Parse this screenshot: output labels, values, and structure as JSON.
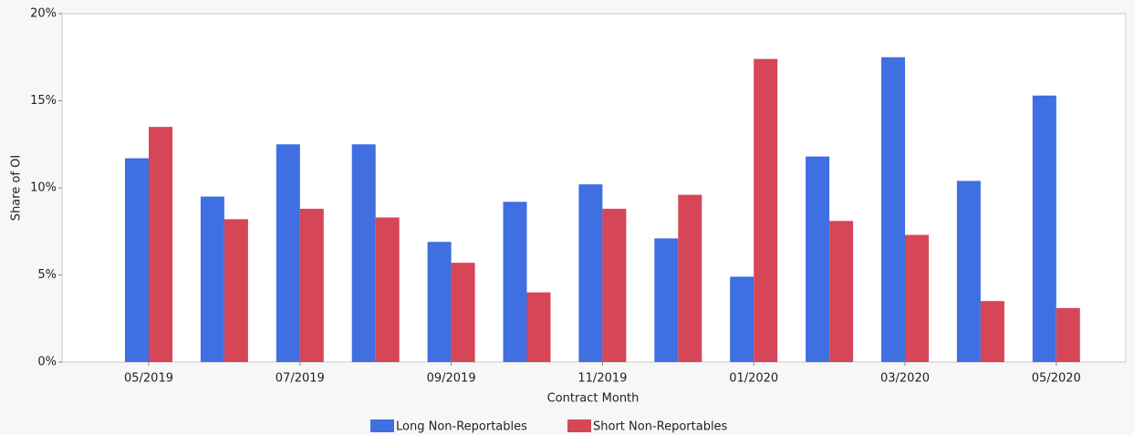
{
  "chart_data": {
    "type": "bar",
    "x_label": "Contract Month",
    "y_label": "Share of OI",
    "categories": [
      "05/2019",
      null,
      "07/2019",
      null,
      "09/2019",
      null,
      "11/2019",
      null,
      "01/2020",
      null,
      "03/2020",
      null,
      "05/2020"
    ],
    "series": [
      {
        "name": "Long Non-Reportables",
        "color": "#3f6fe0",
        "values": [
          11.7,
          9.5,
          12.5,
          12.5,
          6.9,
          9.2,
          10.2,
          7.1,
          4.9,
          11.8,
          17.5,
          10.4,
          15.3
        ]
      },
      {
        "name": "Short Non-Reportables",
        "color": "#d64657",
        "values": [
          13.5,
          8.2,
          8.8,
          8.3,
          5.7,
          4.0,
          8.8,
          9.6,
          17.4,
          8.1,
          7.3,
          3.5,
          3.1
        ]
      }
    ],
    "ylim": [
      0,
      20
    ],
    "yticks": [
      {
        "value": 0,
        "label": "0%"
      },
      {
        "value": 5,
        "label": "5%"
      },
      {
        "value": 10,
        "label": "10%"
      },
      {
        "value": 15,
        "label": "15%"
      },
      {
        "value": 20,
        "label": "20%"
      }
    ],
    "grid": false
  }
}
